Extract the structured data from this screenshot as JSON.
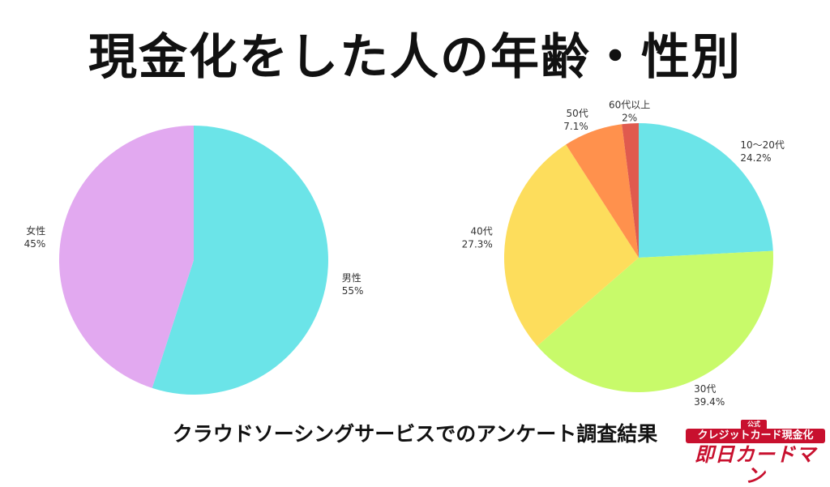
{
  "title": "現金化をした人の年齢・性別",
  "footer": "クラウドソーシングサービスでのアンケート調査結果",
  "logo": {
    "tag": "公式",
    "line1": "クレジットカード現金化",
    "line2": "即日カードマン"
  },
  "chart_data": [
    {
      "type": "pie",
      "categories": [
        "男性",
        "女性"
      ],
      "values": [
        55,
        45
      ],
      "labels": [
        "55%",
        "45%"
      ],
      "colors": [
        "#6BE4E8",
        "#E2A9F0"
      ],
      "start_angle": 0,
      "direction": "clockwise"
    },
    {
      "type": "pie",
      "categories": [
        "10〜20代",
        "30代",
        "40代",
        "50代",
        "60代以上"
      ],
      "values": [
        24.2,
        39.4,
        27.3,
        7.1,
        2
      ],
      "labels": [
        "24.2%",
        "39.4%",
        "27.3%",
        "7.1%",
        "2%"
      ],
      "colors": [
        "#6BE4E8",
        "#C8FA6A",
        "#FDDD5C",
        "#FF914D",
        "#E05A4E"
      ],
      "start_angle": 0,
      "direction": "clockwise"
    }
  ]
}
